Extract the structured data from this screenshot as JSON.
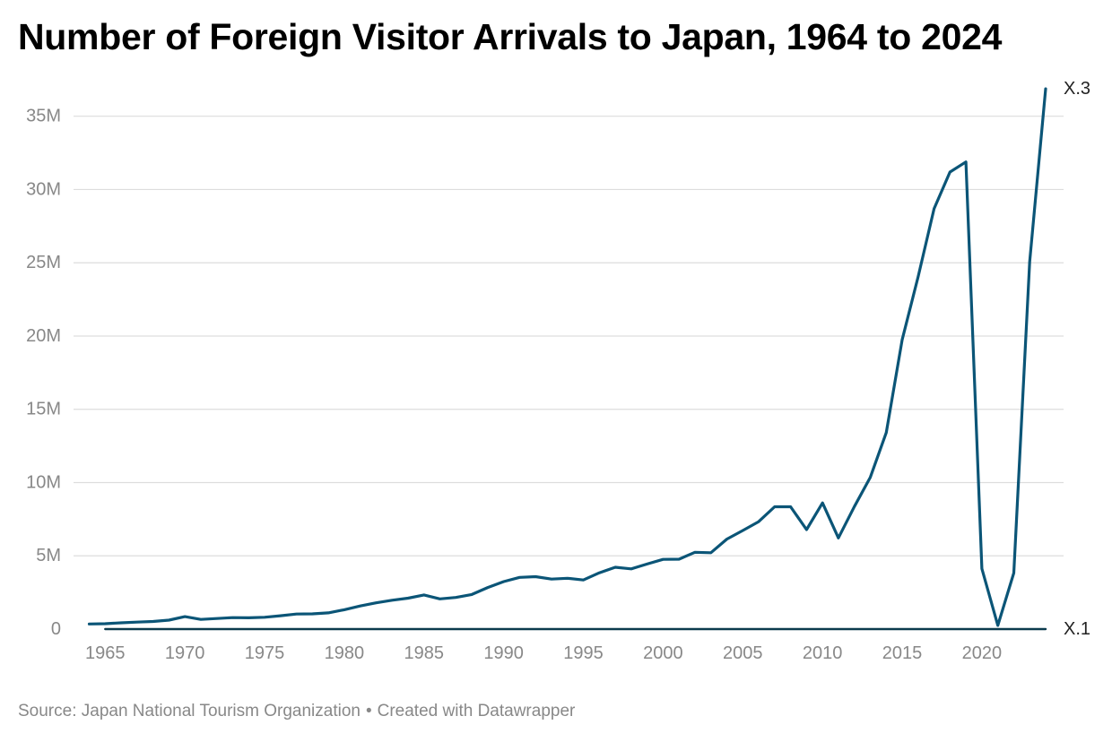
{
  "title": "Number of Foreign Visitor Arrivals to Japan, 1964 to 2024",
  "source": {
    "text": "Source: Japan National Tourism Organization",
    "separator": "•",
    "credit": "Created with Datawrapper"
  },
  "colors": {
    "line_main": "#0b5577",
    "line_baseline": "#0b3a4d",
    "grid": "#dddddd",
    "tick_label": "#888888"
  },
  "chart_data": {
    "type": "line",
    "title": "Number of Foreign Visitor Arrivals to Japan, 1964 to 2024",
    "xlabel": "",
    "ylabel": "",
    "xlim": [
      1964,
      2024
    ],
    "ylim": [
      0,
      37000000
    ],
    "grid": true,
    "legend": "none",
    "x_ticks": [
      1965,
      1970,
      1975,
      1980,
      1985,
      1990,
      1995,
      2000,
      2005,
      2010,
      2015,
      2020
    ],
    "y_ticks": [
      {
        "value": 0,
        "label": "0"
      },
      {
        "value": 5000000,
        "label": "5M"
      },
      {
        "value": 10000000,
        "label": "10M"
      },
      {
        "value": 15000000,
        "label": "15M"
      },
      {
        "value": 20000000,
        "label": "20M"
      },
      {
        "value": 25000000,
        "label": "25M"
      },
      {
        "value": 30000000,
        "label": "30M"
      },
      {
        "value": 35000000,
        "label": "35M"
      }
    ],
    "series": [
      {
        "name": "X.3",
        "x": [
          1964,
          1965,
          1966,
          1967,
          1968,
          1969,
          1970,
          1971,
          1972,
          1973,
          1974,
          1975,
          1976,
          1977,
          1978,
          1979,
          1980,
          1981,
          1982,
          1983,
          1984,
          1985,
          1986,
          1987,
          1988,
          1989,
          1990,
          1991,
          1992,
          1993,
          1994,
          1995,
          1996,
          1997,
          1998,
          1999,
          2000,
          2001,
          2002,
          2003,
          2004,
          2005,
          2006,
          2007,
          2008,
          2009,
          2010,
          2011,
          2012,
          2013,
          2014,
          2015,
          2016,
          2017,
          2018,
          2019,
          2020,
          2021,
          2022,
          2023,
          2024
        ],
        "values": [
          350000,
          370000,
          430000,
          480000,
          520000,
          610000,
          850000,
          660000,
          720000,
          780000,
          770000,
          810000,
          910000,
          1030000,
          1040000,
          1110000,
          1320000,
          1580000,
          1790000,
          1970000,
          2110000,
          2330000,
          2060000,
          2160000,
          2360000,
          2840000,
          3240000,
          3530000,
          3580000,
          3410000,
          3470000,
          3350000,
          3840000,
          4220000,
          4110000,
          4440000,
          4760000,
          4770000,
          5240000,
          5210000,
          6140000,
          6730000,
          7330000,
          8350000,
          8350000,
          6790000,
          8610000,
          6220000,
          8360000,
          10360000,
          13410000,
          19740000,
          24040000,
          28690000,
          31190000,
          31880000,
          4120000,
          250000,
          3830000,
          25070000,
          36870000
        ]
      },
      {
        "name": "X.1",
        "x": [
          1965,
          2024
        ],
        "values": [
          0,
          0
        ]
      }
    ]
  }
}
